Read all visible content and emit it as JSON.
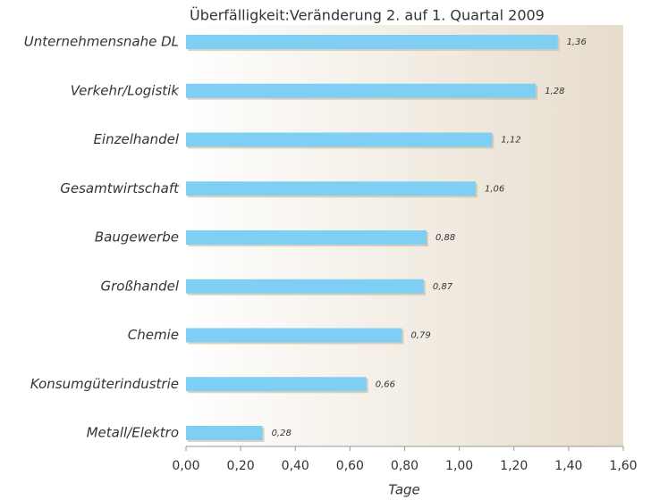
{
  "chart_data": {
    "type": "bar",
    "orientation": "horizontal",
    "title": "Überfälligkeit:Veränderung 2. auf 1. Quartal 2009",
    "xlabel": "Tage",
    "categories": [
      "Unternehmensnahe DL",
      "Verkehr/Logistik",
      "Einzelhandel",
      "Gesamtwirtschaft",
      "Baugewerbe",
      "Großhandel",
      "Chemie",
      "Konsumgüterindustrie",
      "Metall/Elektro"
    ],
    "values": [
      1.36,
      1.28,
      1.12,
      1.06,
      0.88,
      0.87,
      0.79,
      0.66,
      0.28
    ],
    "value_labels": [
      "1,36",
      "1,28",
      "1,12",
      "1,06",
      "0,88",
      "0,87",
      "0,79",
      "0,66",
      "0,28"
    ],
    "color": "#7ecff3",
    "xlim": [
      0,
      1.6
    ],
    "xticks": [
      {
        "value": 0,
        "label": "0,00"
      },
      {
        "value": 0.2,
        "label": "0,20"
      },
      {
        "value": 0.4,
        "label": "0,40"
      },
      {
        "value": 0.6,
        "label": "0,60"
      },
      {
        "value": 0.8,
        "label": "0,80"
      },
      {
        "value": 1.0,
        "label": "1,00"
      },
      {
        "value": 1.2,
        "label": "1,20"
      },
      {
        "value": 1.4,
        "label": "1,40"
      },
      {
        "value": 1.6,
        "label": "1,60"
      }
    ]
  }
}
